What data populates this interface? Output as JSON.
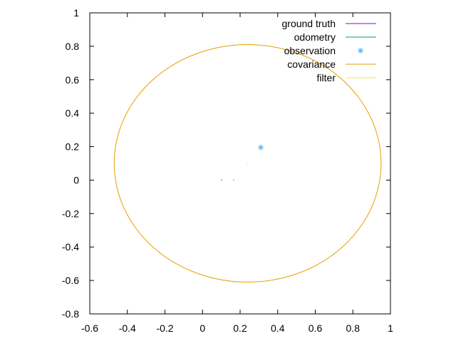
{
  "chart_data": {
    "type": "scatter",
    "xlim": [
      -0.6,
      1.0
    ],
    "ylim": [
      -0.8,
      1.0
    ],
    "x_ticks": [
      "-0.6",
      "-0.4",
      "-0.2",
      "0",
      "0.2",
      "0.4",
      "0.6",
      "0.8",
      "1"
    ],
    "y_ticks": [
      "1",
      "0.8",
      "0.6",
      "0.4",
      "0.2",
      "0",
      "-0.2",
      "-0.4",
      "-0.6",
      "-0.8"
    ],
    "legend_position": "top-right",
    "legend": [
      {
        "label": "ground truth",
        "color": "#9400d3",
        "style": "line"
      },
      {
        "label": "odometry",
        "color": "#009e73",
        "style": "line"
      },
      {
        "label": "observation",
        "color": "#56b4e9",
        "style": "star"
      },
      {
        "label": "covariance",
        "color": "#e69f00",
        "style": "line"
      },
      {
        "label": "filter",
        "color": "#f0e442",
        "style": "line"
      }
    ],
    "series": [
      {
        "name": "ground truth",
        "points": [
          [
            0.1,
            0.0
          ]
        ]
      },
      {
        "name": "odometry",
        "points": [
          [
            0.165,
            0.0
          ]
        ]
      },
      {
        "name": "observation",
        "points": [
          [
            0.31,
            0.195
          ]
        ]
      },
      {
        "name": "covariance",
        "ellipse": {
          "center": [
            0.24,
            0.1
          ],
          "rx": 0.71,
          "ry": 0.71
        }
      },
      {
        "name": "filter",
        "points": [
          [
            0.24,
            0.1
          ]
        ]
      }
    ]
  }
}
